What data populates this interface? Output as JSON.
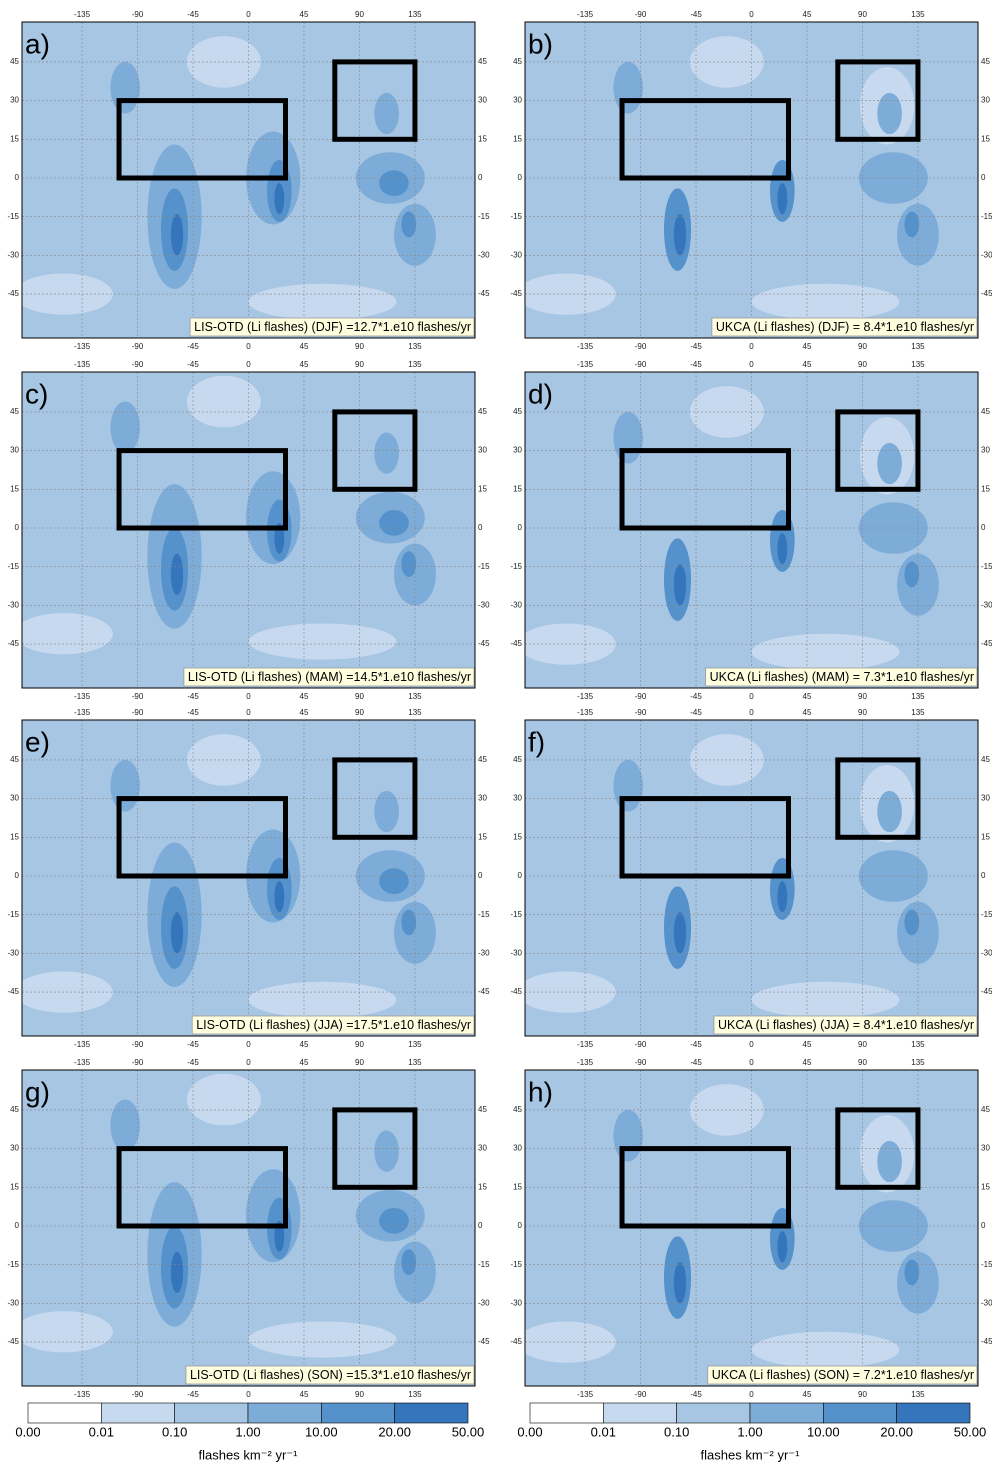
{
  "panels": [
    {
      "label": "a)",
      "caption": "LIS-OTD (Li flashes) (DJF) =12.7*1.e10 flashes/yr"
    },
    {
      "label": "b)",
      "caption": "UKCA (Li flashes) (DJF) = 8.4*1.e10 flashes/yr"
    },
    {
      "label": "c)",
      "caption": "LIS-OTD (Li flashes) (MAM) =14.5*1.e10 flashes/yr"
    },
    {
      "label": "d)",
      "caption": "UKCA (Li flashes) (MAM) = 7.3*1.e10 flashes/yr"
    },
    {
      "label": "e)",
      "caption": "LIS-OTD (Li flashes) (JJA) =17.5*1.e10 flashes/yr"
    },
    {
      "label": "f)",
      "caption": "UKCA (Li flashes) (JJA) = 8.4*1.e10 flashes/yr"
    },
    {
      "label": "g)",
      "caption": "LIS-OTD (Li flashes) (SON) =15.3*1.e10 flashes/yr"
    },
    {
      "label": "h)",
      "caption": "UKCA (Li flashes) (SON) = 7.2*1.e10 flashes/yr"
    }
  ],
  "lon_ticks": [
    -135,
    -90,
    -45,
    0,
    45,
    90,
    135
  ],
  "lat_ticks": [
    45,
    30,
    15,
    0,
    -15,
    -30,
    -45
  ],
  "colorbar": {
    "ticks": [
      "0.00",
      "0.01",
      "0.10",
      "1.00",
      "10.00",
      "20.00",
      "50.00"
    ],
    "colors": [
      "#ffffff",
      "#c7d9ee",
      "#a6c6e4",
      "#7eacd8",
      "#5592cb",
      "#3475bb",
      "#0f54a3"
    ],
    "label": "flashes km⁻² yr⁻¹"
  }
}
